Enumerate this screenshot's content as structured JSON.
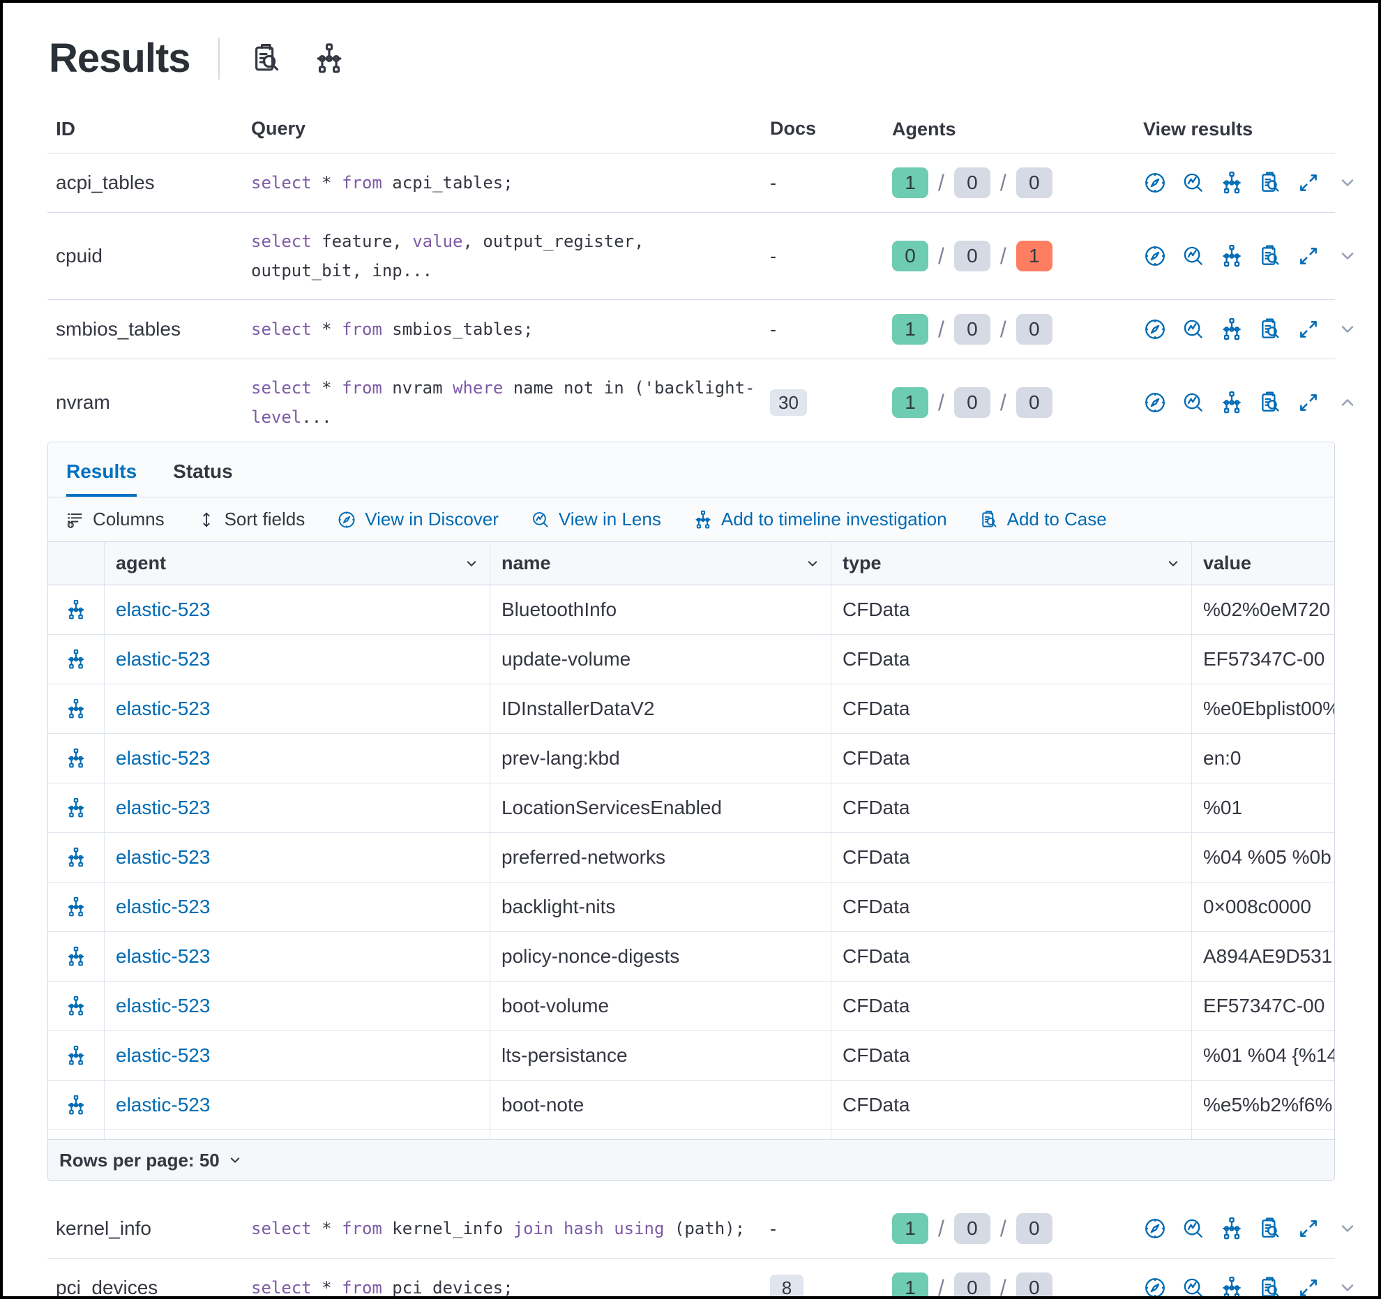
{
  "header": {
    "title": "Results",
    "icons": [
      {
        "name": "inspect-icon"
      },
      {
        "name": "timeline-icon"
      }
    ]
  },
  "queries_table": {
    "columns": {
      "id": "ID",
      "query": "Query",
      "docs": "Docs",
      "agents": "Agents",
      "view_results": "View results"
    },
    "rows": [
      {
        "id": "acpi_tables",
        "query": [
          [
            "kw",
            "select"
          ],
          [
            "pl",
            " * "
          ],
          [
            "kw",
            "from"
          ],
          [
            "pl",
            " acpi_tables;"
          ]
        ],
        "docs": "-",
        "docs_is_badge": false,
        "agents": [
          {
            "value": "1",
            "status": "green"
          },
          {
            "value": "0",
            "status": "gray"
          },
          {
            "value": "0",
            "status": "gray"
          }
        ],
        "expanded": false
      },
      {
        "id": "cpuid",
        "query": [
          [
            "kw",
            "select"
          ],
          [
            "pl",
            " feature, "
          ],
          [
            "kw",
            "value"
          ],
          [
            "pl",
            ", output_register, output_bit, inp..."
          ]
        ],
        "docs": "-",
        "docs_is_badge": false,
        "agents": [
          {
            "value": "0",
            "status": "green"
          },
          {
            "value": "0",
            "status": "gray"
          },
          {
            "value": "1",
            "status": "coral"
          }
        ],
        "expanded": false
      },
      {
        "id": "smbios_tables",
        "query": [
          [
            "kw",
            "select"
          ],
          [
            "pl",
            " * "
          ],
          [
            "kw",
            "from"
          ],
          [
            "pl",
            " smbios_tables;"
          ]
        ],
        "docs": "-",
        "docs_is_badge": false,
        "agents": [
          {
            "value": "1",
            "status": "green"
          },
          {
            "value": "0",
            "status": "gray"
          },
          {
            "value": "0",
            "status": "gray"
          }
        ],
        "expanded": false
      },
      {
        "id": "nvram",
        "query": [
          [
            "kw",
            "select"
          ],
          [
            "pl",
            " * "
          ],
          [
            "kw",
            "from"
          ],
          [
            "pl",
            " nvram "
          ],
          [
            "kw",
            "where"
          ],
          [
            "pl",
            " name not in ('backlight-"
          ],
          [
            "kw",
            "level"
          ],
          [
            "pl",
            "..."
          ]
        ],
        "docs": "30",
        "docs_is_badge": true,
        "agents": [
          {
            "value": "1",
            "status": "green"
          },
          {
            "value": "0",
            "status": "gray"
          },
          {
            "value": "0",
            "status": "gray"
          }
        ],
        "expanded": true
      },
      {
        "id": "kernel_info",
        "query": [
          [
            "kw",
            "select"
          ],
          [
            "pl",
            " * "
          ],
          [
            "kw",
            "from"
          ],
          [
            "pl",
            " kernel_info "
          ],
          [
            "kw",
            "join"
          ],
          [
            "pl",
            " "
          ],
          [
            "kw",
            "hash"
          ],
          [
            "pl",
            " "
          ],
          [
            "kw",
            "using"
          ],
          [
            "pl",
            " (path);"
          ]
        ],
        "docs": "-",
        "docs_is_badge": false,
        "agents": [
          {
            "value": "1",
            "status": "green"
          },
          {
            "value": "0",
            "status": "gray"
          },
          {
            "value": "0",
            "status": "gray"
          }
        ],
        "expanded": false
      },
      {
        "id": "pci_devices",
        "query": [
          [
            "kw",
            "select"
          ],
          [
            "pl",
            " * "
          ],
          [
            "kw",
            "from"
          ],
          [
            "pl",
            " pci_devices;"
          ]
        ],
        "docs": "8",
        "docs_is_badge": true,
        "agents": [
          {
            "value": "1",
            "status": "green"
          },
          {
            "value": "0",
            "status": "gray"
          },
          {
            "value": "0",
            "status": "gray"
          }
        ],
        "expanded": false
      }
    ],
    "view_result_icons": [
      "discover-icon",
      "lens-icon",
      "timeline-icon",
      "case-icon",
      "expand-icon"
    ]
  },
  "expanded_panel": {
    "tabs": [
      {
        "label": "Results",
        "active": true
      },
      {
        "label": "Status",
        "active": false
      }
    ],
    "toolbar": {
      "columns": "Columns",
      "sort_fields": "Sort fields",
      "view_in_discover": "View in Discover",
      "view_in_lens": "View in Lens",
      "add_to_timeline": "Add to timeline investigation",
      "add_to_case": "Add to Case"
    },
    "grid": {
      "columns": [
        "agent",
        "name",
        "type",
        "value"
      ],
      "rows": [
        {
          "agent": "elastic-523",
          "name": "BluetoothInfo",
          "type": "CFData",
          "value": "%02%0eM720"
        },
        {
          "agent": "elastic-523",
          "name": "update-volume",
          "type": "CFData",
          "value": "EF57347C-00"
        },
        {
          "agent": "elastic-523",
          "name": "IDInstallerDataV2",
          "type": "CFData",
          "value": "%e0Ebplist00%"
        },
        {
          "agent": "elastic-523",
          "name": "prev-lang:kbd",
          "type": "CFData",
          "value": "en:0"
        },
        {
          "agent": "elastic-523",
          "name": "LocationServicesEnabled",
          "type": "CFData",
          "value": "%01"
        },
        {
          "agent": "elastic-523",
          "name": "preferred-networks",
          "type": "CFData",
          "value": "%04 %05 %0b"
        },
        {
          "agent": "elastic-523",
          "name": "backlight-nits",
          "type": "CFData",
          "value": "0×008c0000"
        },
        {
          "agent": "elastic-523",
          "name": "policy-nonce-digests",
          "type": "CFData",
          "value": "A894AE9D531"
        },
        {
          "agent": "elastic-523",
          "name": "boot-volume",
          "type": "CFData",
          "value": "EF57347C-00"
        },
        {
          "agent": "elastic-523",
          "name": "lts-persistance",
          "type": "CFData",
          "value": "%01 %04 {%14"
        },
        {
          "agent": "elastic-523",
          "name": "boot-note",
          "type": "CFData",
          "value": "%e5%b2%f6%"
        }
      ],
      "pagination": "Rows per page: 50"
    }
  },
  "colors": {
    "accent_blue": "#0071C2",
    "link_blue": "#006BB4",
    "success_green": "#6DCCB1",
    "neutral_gray": "#D5DAE4",
    "error_coral": "#FF7E62",
    "keyword_purple": "#7D5AA6",
    "text": "#343741"
  }
}
